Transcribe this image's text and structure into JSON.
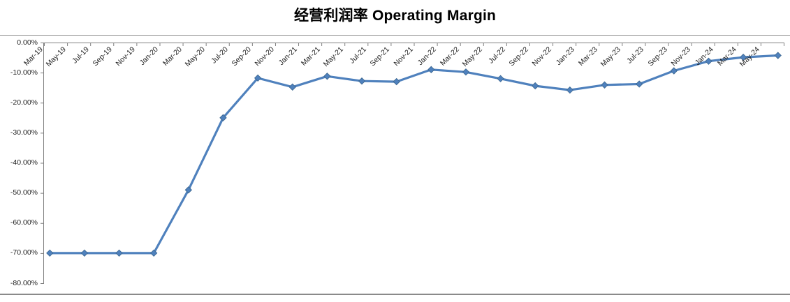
{
  "header": {
    "title": "经营利润率 Operating Margin"
  },
  "colors": {
    "line": "#4F81BD",
    "marker_fill": "#4F81BD",
    "marker_edge": "#39648C",
    "axis": "#808080",
    "tick": "#808080",
    "label_text": "#1f1f1f",
    "title_text": "#000000",
    "divider": "#919191",
    "bottom_border": "#8a8a8a",
    "background": "#ffffff"
  },
  "chart_data": {
    "type": "line",
    "title": "经营利润率 Operating Margin",
    "xlabel": "",
    "ylabel": "",
    "legend": false,
    "grid": false,
    "marker": "diamond",
    "ylim": [
      -80,
      0
    ],
    "y_tick_labels": [
      "0.00%",
      "-10.00%",
      "-20.00%",
      "-30.00%",
      "-40.00%",
      "-50.00%",
      "-60.00%",
      "-70.00%",
      "-80.00%"
    ],
    "x_tick_labels": [
      "Mar-19",
      "May-19",
      "Jul-19",
      "Sep-19",
      "Nov-19",
      "Jan-20",
      "Mar-20",
      "May-20",
      "Jul-20",
      "Sep-20",
      "Nov-20",
      "Jan-21",
      "Mar-21",
      "May-21",
      "Jul-21",
      "Sep-21",
      "Nov-21",
      "Jan-22",
      "Mar-22",
      "May-22",
      "Jul-22",
      "Sep-22",
      "Nov-22",
      "Jan-23",
      "Mar-23",
      "May-23",
      "Jul-23",
      "Sep-23",
      "Nov-23",
      "Jan-24",
      "Mar-24",
      "May-24"
    ],
    "x": [
      "Mar-19",
      "Jun-19",
      "Sep-19",
      "Dec-19",
      "Mar-20",
      "Jun-20",
      "Sep-20",
      "Dec-20",
      "Mar-21",
      "Jun-21",
      "Sep-21",
      "Dec-21",
      "Mar-22",
      "Jun-22",
      "Sep-22",
      "Dec-22",
      "Mar-23",
      "Jun-23",
      "Sep-23",
      "Dec-23",
      "Mar-24",
      "Jun-24"
    ],
    "series": [
      {
        "name": "经营利润率 Operating Margin",
        "values": [
          -70.0,
          -70.0,
          -70.0,
          -70.0,
          -49.0,
          -25.0,
          -11.8,
          -14.8,
          -11.2,
          -12.8,
          -13.0,
          -9.0,
          -9.8,
          -12.0,
          -14.4,
          -15.8,
          -14.1,
          -13.8,
          -9.4,
          -6.2,
          -4.9,
          -4.3
        ]
      }
    ]
  }
}
